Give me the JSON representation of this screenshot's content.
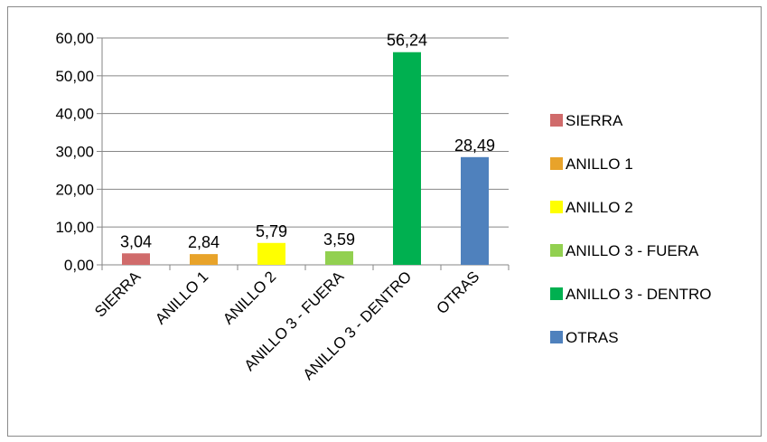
{
  "chart_data": {
    "type": "bar",
    "categories": [
      "SIERRA",
      "ANILLO 1",
      "ANILLO 2",
      "ANILLO 3 - FUERA",
      "ANILLO 3 - DENTRO",
      "OTRAS"
    ],
    "values": [
      3.04,
      2.84,
      5.79,
      3.59,
      56.24,
      28.49
    ],
    "data_labels": [
      "3,04",
      "2,84",
      "5,79",
      "3,59",
      "56,24",
      "28,49"
    ],
    "colors": [
      "#d06b6b",
      "#e8a32a",
      "#ffff00",
      "#92d050",
      "#00b050",
      "#4f81bd"
    ],
    "y_ticks": [
      "0,00",
      "10,00",
      "20,00",
      "30,00",
      "40,00",
      "50,00",
      "60,00"
    ],
    "ylim": [
      0,
      60
    ],
    "grid": true,
    "legend_position": "right",
    "legend": [
      "SIERRA",
      "ANILLO 1",
      "ANILLO 2",
      "ANILLO 3 - FUERA",
      "ANILLO 3 - DENTRO",
      "OTRAS"
    ],
    "title": "",
    "xlabel": "",
    "ylabel": ""
  }
}
